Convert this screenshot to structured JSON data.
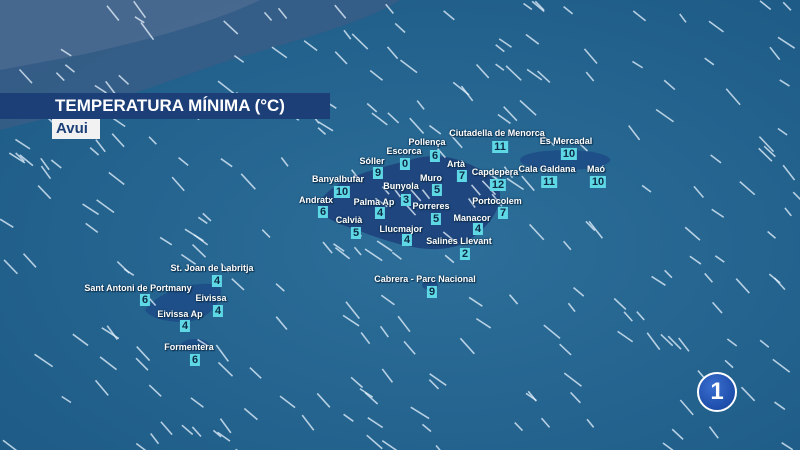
{
  "header": {
    "title": "TEMPERATURA MÍNIMA (°C)",
    "subtitle": "Avui"
  },
  "logo": "1",
  "stations": [
    {
      "name": "Escorca",
      "value": "0"
    },
    {
      "name": "Pollença",
      "value": "6"
    },
    {
      "name": "Ciutadella de Menorca",
      "value": "11"
    },
    {
      "name": "Es Mercadal",
      "value": "10"
    },
    {
      "name": "Sóller",
      "value": "9"
    },
    {
      "name": "Artà",
      "value": "7"
    },
    {
      "name": "Capdepera",
      "value": "12"
    },
    {
      "name": "Cala Galdana",
      "value": "11"
    },
    {
      "name": "Maó",
      "value": "10"
    },
    {
      "name": "Banyalbufar",
      "value": "10"
    },
    {
      "name": "Muro",
      "value": "5"
    },
    {
      "name": "Bunyola",
      "value": "3"
    },
    {
      "name": "Andratx",
      "value": "6"
    },
    {
      "name": "Palma Ap",
      "value": "4"
    },
    {
      "name": "Porreres",
      "value": "5"
    },
    {
      "name": "Portocolem",
      "value": "7"
    },
    {
      "name": "Calvià",
      "value": "5"
    },
    {
      "name": "Manacor",
      "value": "4"
    },
    {
      "name": "Llucmajor",
      "value": "4"
    },
    {
      "name": "Salines Llevant",
      "value": "2"
    },
    {
      "name": "Cabrera - Parc Nacional",
      "value": "9"
    },
    {
      "name": "St. Joan de Labritja",
      "value": "4"
    },
    {
      "name": "Sant Antoni de Portmany",
      "value": "6"
    },
    {
      "name": "Eivissa",
      "value": "4"
    },
    {
      "name": "Eivissa Ap",
      "value": "4"
    },
    {
      "name": "Formentera",
      "value": "6"
    }
  ]
}
